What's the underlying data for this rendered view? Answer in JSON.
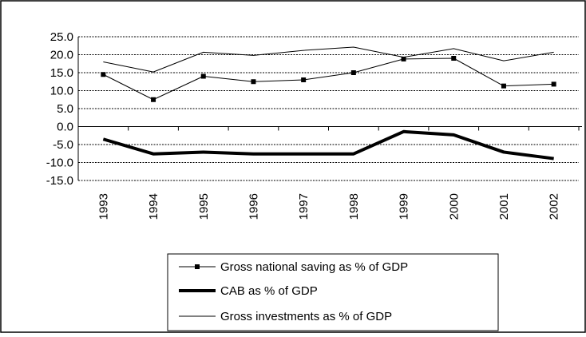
{
  "chart_data": {
    "type": "line",
    "title": "",
    "xlabel": "",
    "ylabel": "",
    "x": [
      "1993",
      "1994",
      "1995",
      "1996",
      "1997",
      "1998",
      "1999",
      "2000",
      "2001",
      "2002"
    ],
    "ylim": [
      -15,
      25
    ],
    "yticks": [
      "25.0",
      "20.0",
      "15.0",
      "10.0",
      "5.0",
      "0.0",
      "-5.0",
      "-10.0",
      "-15.0"
    ],
    "grid": "horizontal dotted",
    "legend_position": "bottom",
    "series": [
      {
        "name": "Gross national saving as % of GDP",
        "values": [
          14.5,
          7.5,
          14.0,
          12.5,
          13.0,
          15.0,
          18.8,
          19.0,
          11.3,
          11.8
        ],
        "color": "#000000",
        "style": "thin line with square markers"
      },
      {
        "name": "CAB as % of GDP",
        "values": [
          -3.5,
          -7.6,
          -7.1,
          -7.6,
          -7.6,
          -7.6,
          -1.4,
          -2.3,
          -7.1,
          -8.9
        ],
        "color": "#000000",
        "style": "thick line"
      },
      {
        "name": "Gross investments as % of GDP",
        "values": [
          18.0,
          15.2,
          20.7,
          19.8,
          21.2,
          22.1,
          19.3,
          21.7,
          18.3,
          20.7
        ],
        "color": "#000000",
        "style": "thin line"
      }
    ]
  }
}
